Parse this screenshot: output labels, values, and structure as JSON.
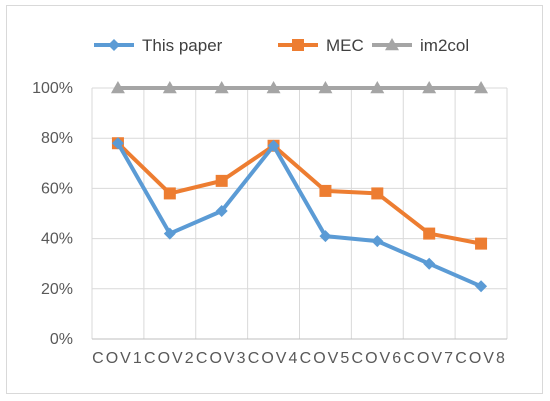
{
  "chart_data": {
    "type": "line",
    "categories": [
      "COV1",
      "COV2",
      "COV3",
      "COV4",
      "COV5",
      "COV6",
      "COV7",
      "COV8"
    ],
    "series": [
      {
        "name": "This paper",
        "color": "#5B9BD5",
        "marker": "diamond",
        "values": [
          78,
          42,
          51,
          77,
          41,
          39,
          30,
          21
        ]
      },
      {
        "name": "MEC",
        "color": "#ED7D31",
        "marker": "square",
        "values": [
          78,
          58,
          63,
          77,
          59,
          58,
          42,
          38
        ]
      },
      {
        "name": "im2col",
        "color": "#A5A5A5",
        "marker": "triangle",
        "values": [
          100,
          100,
          100,
          100,
          100,
          100,
          100,
          100
        ]
      }
    ],
    "y_ticks": [
      "0%",
      "20%",
      "40%",
      "60%",
      "80%",
      "100%"
    ],
    "ylim": [
      0,
      100
    ],
    "legend_position": "top",
    "grid": "vertical and horizontal"
  }
}
